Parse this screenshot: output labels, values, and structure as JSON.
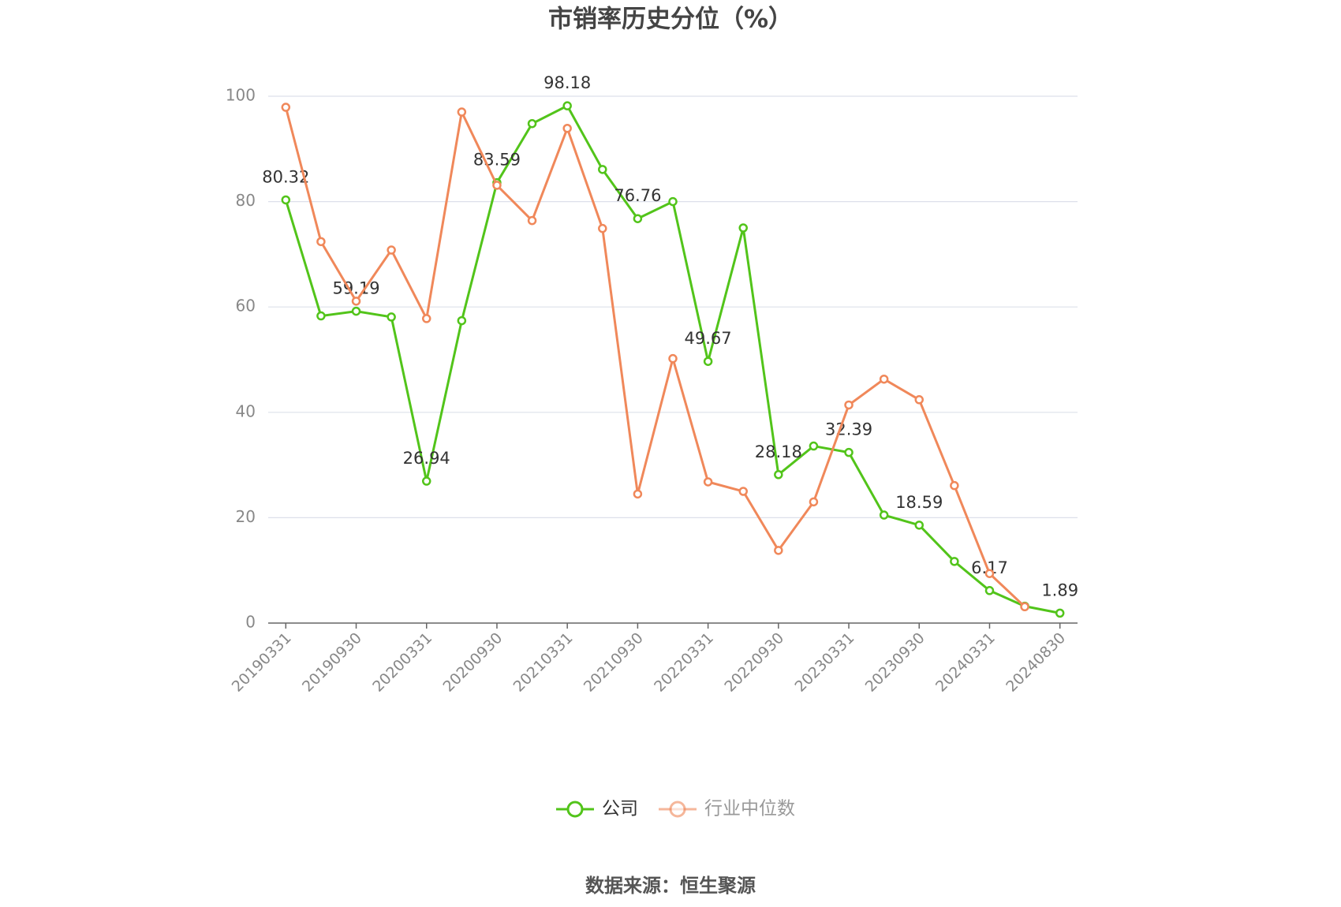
{
  "chart_data": {
    "type": "line",
    "title": "市销率历史分位（%）",
    "source": "数据来源：恒生聚源",
    "categories": [
      "20190331",
      null,
      "20190930",
      null,
      "20200331",
      null,
      "20200930",
      null,
      "20210331",
      null,
      "20210930",
      null,
      "20220331",
      null,
      "20220930",
      null,
      "20230331",
      null,
      "20230930",
      null,
      "20240331",
      null,
      "20240830"
    ],
    "series": [
      {
        "name": "公司",
        "color": "#52c41a",
        "values": [
          80.32,
          58.3,
          59.19,
          58.1,
          26.94,
          57.4,
          83.59,
          94.8,
          98.18,
          86.1,
          76.76,
          80.0,
          49.67,
          75.0,
          28.18,
          33.6,
          32.39,
          20.5,
          18.59,
          11.7,
          6.17,
          3.2,
          1.89
        ],
        "value_labels": [
          "80.32",
          null,
          "59.19",
          null,
          "26.94",
          null,
          "83.59",
          null,
          "98.18",
          null,
          "76.76",
          null,
          "49.67",
          null,
          "28.18",
          null,
          "32.39",
          null,
          "18.59",
          null,
          "6.17",
          null,
          "1.89"
        ]
      },
      {
        "name": "行业中位数",
        "color": "#f0885a",
        "values": [
          97.9,
          72.4,
          61.1,
          70.8,
          57.8,
          97.0,
          83.1,
          76.4,
          93.9,
          74.9,
          24.5,
          50.2,
          26.8,
          25.0,
          13.8,
          23.0,
          41.4,
          46.3,
          42.4,
          26.1,
          9.4,
          3.1,
          null
        ]
      }
    ],
    "ylim": [
      0,
      100
    ],
    "yticks": [
      0,
      20,
      40,
      60,
      80,
      100
    ],
    "grid": true
  }
}
